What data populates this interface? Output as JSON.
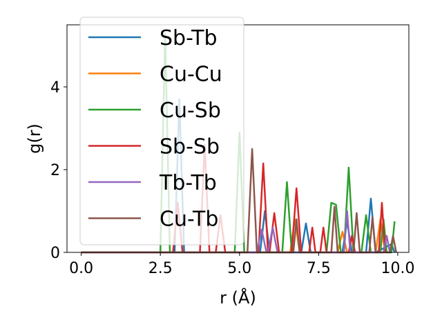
{
  "chart_data": {
    "type": "line",
    "xlabel": "r (Å)",
    "ylabel": "g(r)",
    "xlim": [
      -0.45,
      10.35
    ],
    "ylim": [
      0,
      5.5
    ],
    "xticks": [
      0.0,
      2.5,
      5.0,
      7.5,
      10.0
    ],
    "xtick_labels": [
      "0.0",
      "2.5",
      "5.0",
      "7.5",
      "10.0"
    ],
    "yticks": [
      0,
      2,
      4
    ],
    "ytick_labels": [
      "0",
      "2",
      "4"
    ],
    "grid": false,
    "legend_position": "top-left",
    "series": [
      {
        "name": "Sb-Tb",
        "color": "#1f77b4",
        "points": [
          [
            0,
            0
          ],
          [
            2.95,
            0
          ],
          [
            3.1,
            3.7
          ],
          [
            3.25,
            0
          ],
          [
            5.65,
            0
          ],
          [
            5.8,
            1.0
          ],
          [
            5.95,
            0
          ],
          [
            6.95,
            0
          ],
          [
            7.1,
            0.7
          ],
          [
            7.25,
            0
          ],
          [
            8.25,
            0
          ],
          [
            8.4,
            0.75
          ],
          [
            8.55,
            0
          ],
          [
            9.0,
            0
          ],
          [
            9.15,
            1.3
          ],
          [
            9.3,
            0
          ],
          [
            9.8,
            0.2
          ],
          [
            9.9,
            0
          ]
        ]
      },
      {
        "name": "Cu-Cu",
        "color": "#ff7f0e",
        "points": [
          [
            0,
            0
          ],
          [
            6.6,
            0
          ],
          [
            6.75,
            0.8
          ],
          [
            6.9,
            0
          ],
          [
            8.1,
            0
          ],
          [
            8.25,
            0.5
          ],
          [
            8.4,
            0
          ],
          [
            9.3,
            0
          ],
          [
            9.45,
            0.8
          ],
          [
            9.6,
            0
          ]
        ]
      },
      {
        "name": "Cu-Sb",
        "color": "#2ca02c",
        "points": [
          [
            0,
            0
          ],
          [
            2.5,
            0
          ],
          [
            2.65,
            5.3
          ],
          [
            2.8,
            0
          ],
          [
            4.85,
            0
          ],
          [
            5.0,
            2.9
          ],
          [
            5.15,
            0
          ],
          [
            6.35,
            0
          ],
          [
            6.5,
            1.7
          ],
          [
            6.65,
            0
          ],
          [
            7.75,
            0
          ],
          [
            7.9,
            1.2
          ],
          [
            8.05,
            1.15
          ],
          [
            8.2,
            0
          ],
          [
            8.3,
            0
          ],
          [
            8.45,
            2.05
          ],
          [
            8.6,
            0
          ],
          [
            8.85,
            0
          ],
          [
            9.0,
            0.9
          ],
          [
            9.15,
            0
          ],
          [
            9.45,
            0
          ],
          [
            9.55,
            0.8
          ],
          [
            9.65,
            0
          ],
          [
            9.8,
            0
          ],
          [
            9.9,
            0.75
          ]
        ]
      },
      {
        "name": "Sb-Sb",
        "color": "#d62728",
        "points": [
          [
            0,
            0
          ],
          [
            2.9,
            0
          ],
          [
            3.05,
            1.2
          ],
          [
            3.2,
            0
          ],
          [
            3.75,
            0
          ],
          [
            3.9,
            2.6
          ],
          [
            4.05,
            0
          ],
          [
            4.25,
            0
          ],
          [
            4.4,
            0.9
          ],
          [
            4.55,
            0
          ],
          [
            5.6,
            0
          ],
          [
            5.75,
            2.15
          ],
          [
            5.9,
            0
          ],
          [
            5.95,
            0
          ],
          [
            6.1,
            0.95
          ],
          [
            6.25,
            0
          ],
          [
            6.65,
            0
          ],
          [
            6.8,
            1.55
          ],
          [
            6.95,
            0
          ],
          [
            7.2,
            0
          ],
          [
            7.3,
            0.6
          ],
          [
            7.4,
            0
          ],
          [
            7.55,
            0
          ],
          [
            7.65,
            0.6
          ],
          [
            7.75,
            0
          ],
          [
            8.45,
            0
          ],
          [
            8.55,
            0.4
          ],
          [
            8.65,
            0
          ],
          [
            9.4,
            0
          ],
          [
            9.5,
            1.2
          ],
          [
            9.6,
            0
          ]
        ]
      },
      {
        "name": "Tb-Tb",
        "color": "#9467bd",
        "points": [
          [
            0,
            0
          ],
          [
            5.55,
            0
          ],
          [
            5.7,
            0.55
          ],
          [
            5.85,
            0
          ],
          [
            5.9,
            0
          ],
          [
            6.05,
            0.6
          ],
          [
            6.2,
            0
          ],
          [
            8.3,
            0
          ],
          [
            8.4,
            1.0
          ],
          [
            8.5,
            0
          ],
          [
            9.55,
            0
          ],
          [
            9.65,
            0.4
          ],
          [
            9.75,
            0
          ]
        ]
      },
      {
        "name": "Cu-Tb",
        "color": "#8c564b",
        "points": [
          [
            0,
            0
          ],
          [
            5.25,
            0
          ],
          [
            5.4,
            2.5
          ],
          [
            5.55,
            0
          ],
          [
            6.7,
            0
          ],
          [
            6.8,
            0.8
          ],
          [
            6.9,
            0
          ],
          [
            7.9,
            0
          ],
          [
            8.0,
            1.1
          ],
          [
            8.1,
            0
          ],
          [
            8.6,
            0
          ],
          [
            8.7,
            0.95
          ],
          [
            8.8,
            0
          ],
          [
            9.1,
            0
          ],
          [
            9.2,
            0.85
          ],
          [
            9.3,
            0
          ],
          [
            9.75,
            0
          ],
          [
            9.85,
            0.4
          ],
          [
            9.95,
            0
          ]
        ]
      }
    ]
  }
}
